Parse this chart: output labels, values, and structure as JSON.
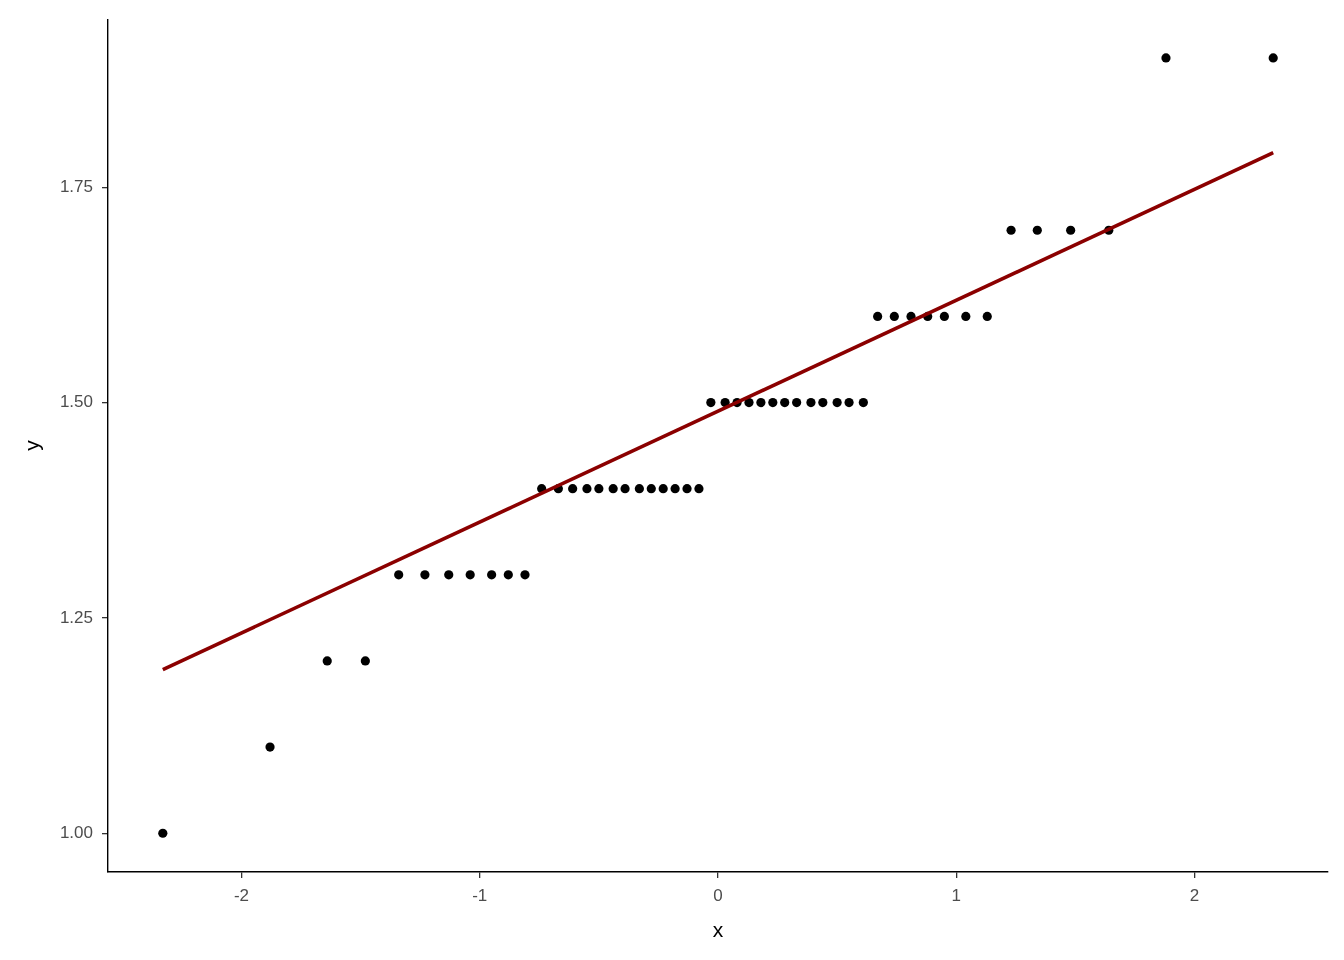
{
  "chart_data": {
    "type": "scatter",
    "xlabel": "x",
    "ylabel": "y",
    "xlim": [
      -2.56,
      2.56
    ],
    "ylim": [
      0.955,
      1.945
    ],
    "xticks": [
      -2,
      -1,
      0,
      1,
      2
    ],
    "yticks": [
      {
        "value": 1,
        "label": "1.00"
      },
      1.25,
      {
        "value": 1.5,
        "label": "1.50"
      },
      1.75
    ],
    "series": [
      {
        "type": "scatter",
        "color": "#000000",
        "marker": "circle",
        "x": [
          -2.33,
          -1.88,
          -1.64,
          -1.48,
          -1.34,
          -1.23,
          -1.13,
          -1.04,
          -0.95,
          -0.88,
          -0.81,
          -0.74,
          -0.67,
          -0.61,
          -0.55,
          -0.5,
          -0.44,
          -0.39,
          -0.33,
          -0.28,
          -0.23,
          -0.18,
          -0.13,
          -0.08,
          -0.03,
          0.03,
          0.08,
          0.13,
          0.18,
          0.23,
          0.28,
          0.33,
          0.39,
          0.44,
          0.5,
          0.55,
          0.61,
          0.67,
          0.74,
          0.81,
          0.88,
          0.95,
          1.04,
          1.13,
          1.23,
          1.34,
          1.48,
          1.64,
          1.88,
          2.33
        ],
        "values": [
          1.0,
          1.1,
          1.2,
          1.2,
          1.3,
          1.3,
          1.3,
          1.3,
          1.3,
          1.3,
          1.3,
          1.4,
          1.4,
          1.4,
          1.4,
          1.4,
          1.4,
          1.4,
          1.4,
          1.4,
          1.4,
          1.4,
          1.4,
          1.4,
          1.5,
          1.5,
          1.5,
          1.5,
          1.5,
          1.5,
          1.5,
          1.5,
          1.5,
          1.5,
          1.5,
          1.5,
          1.5,
          1.6,
          1.6,
          1.6,
          1.6,
          1.6,
          1.6,
          1.6,
          1.7,
          1.7,
          1.7,
          1.7,
          1.9,
          1.9
        ]
      },
      {
        "type": "line",
        "color": "#8b0000",
        "x": [
          -2.33,
          2.33
        ],
        "values": [
          1.19,
          1.79
        ]
      }
    ]
  }
}
